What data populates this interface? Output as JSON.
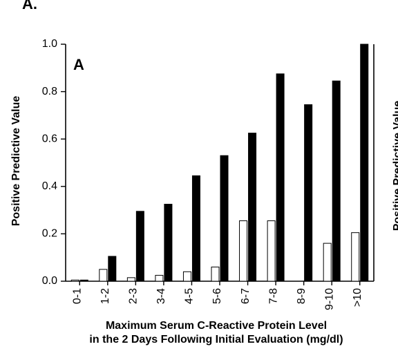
{
  "figure_label": "A.",
  "chart_data": {
    "type": "bar",
    "panel_label": "A",
    "categories": [
      "0-1",
      "1-2",
      "2-3",
      "3-4",
      "4-5",
      "5-6",
      "6-7",
      "7-8",
      "8-9",
      "9-10",
      ">10"
    ],
    "series": [
      {
        "values": [
          0.005,
          0.05,
          0.015,
          0.025,
          0.04,
          0.06,
          0.255,
          0.255,
          0.0,
          0.16,
          0.205
        ],
        "color": "#ffffff"
      },
      {
        "values": [
          0.005,
          0.105,
          0.295,
          0.325,
          0.445,
          0.53,
          0.625,
          0.875,
          0.745,
          0.845,
          1.0
        ],
        "color": "#000000"
      }
    ],
    "ylabel": "Positive Predictive Value",
    "xlabel_lines": [
      "Maximum Serum C-Reactive Protein Level",
      "in the 2 Days Following Initial Evaluation (mg/dl)"
    ],
    "ylim": [
      0,
      1.0
    ],
    "yticks": [
      "0.0",
      "0.2",
      "0.4",
      "0.6",
      "0.8",
      "1.0"
    ],
    "legend": "none",
    "grid": false
  },
  "right_panel_partial": {
    "ylabel": "Positive Predictive Value"
  }
}
